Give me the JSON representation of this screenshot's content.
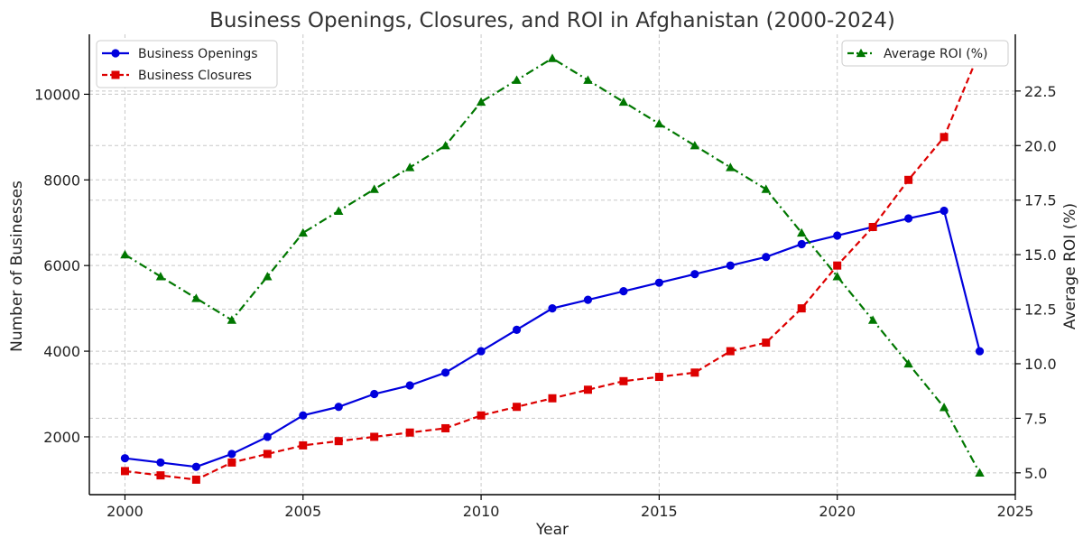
{
  "chart_data": {
    "type": "line",
    "title": "Business Openings, Closures, and ROI in Afghanistan (2000-2024)",
    "xlabel": "Year",
    "ylabel": "Number of Businesses",
    "y2label": "Average ROI (%)",
    "x": [
      2000,
      2001,
      2002,
      2003,
      2004,
      2005,
      2006,
      2007,
      2008,
      2009,
      2010,
      2011,
      2012,
      2013,
      2014,
      2015,
      2016,
      2017,
      2018,
      2019,
      2020,
      2021,
      2022,
      2023,
      2024
    ],
    "xlim": [
      1999,
      2025
    ],
    "xticks": [
      2000,
      2005,
      2010,
      2015,
      2020,
      2025
    ],
    "ylim": [
      650,
      11400
    ],
    "yticks": [
      2000,
      4000,
      6000,
      8000,
      10000
    ],
    "y2lim": [
      4.0,
      25.1
    ],
    "y2ticks": [
      5.0,
      7.5,
      10.0,
      12.5,
      15.0,
      17.5,
      20.0,
      22.5
    ],
    "y2tick_labels": [
      "5.0",
      "7.5",
      "10.0",
      "12.5",
      "15.0",
      "17.5",
      "20.0",
      "22.5"
    ],
    "grid": true,
    "series": [
      {
        "name": "Business Openings",
        "axis": "left",
        "color": "#0000dd",
        "line_style": "solid",
        "marker": "circle",
        "values": [
          1500,
          1400,
          1300,
          1600,
          2000,
          2500,
          2700,
          3000,
          3200,
          3500,
          4000,
          4500,
          5000,
          5200,
          5400,
          5600,
          5800,
          6000,
          6200,
          6500,
          6700,
          6900,
          7100,
          7280,
          4000
        ]
      },
      {
        "name": "Business Closures",
        "axis": "left",
        "color": "#dd0000",
        "line_style": "dashed",
        "marker": "square",
        "values": [
          1200,
          1100,
          1000,
          1400,
          1600,
          1800,
          1900,
          2000,
          2100,
          2200,
          2500,
          2700,
          2900,
          3100,
          3300,
          3400,
          3500,
          4000,
          4200,
          5000,
          6000,
          6900,
          8000,
          9000,
          11000
        ]
      },
      {
        "name": "Average ROI (%)",
        "axis": "right",
        "color": "#007700",
        "line_style": "dashdot",
        "marker": "triangle",
        "values": [
          15,
          14,
          13,
          12,
          14,
          16,
          17,
          18,
          19,
          20,
          22,
          23,
          24,
          23,
          22,
          21,
          20,
          19,
          18,
          16,
          14,
          12,
          10,
          8,
          5
        ]
      }
    ],
    "legend_left_placement": "top-left",
    "legend_right_placement": "top-right"
  }
}
